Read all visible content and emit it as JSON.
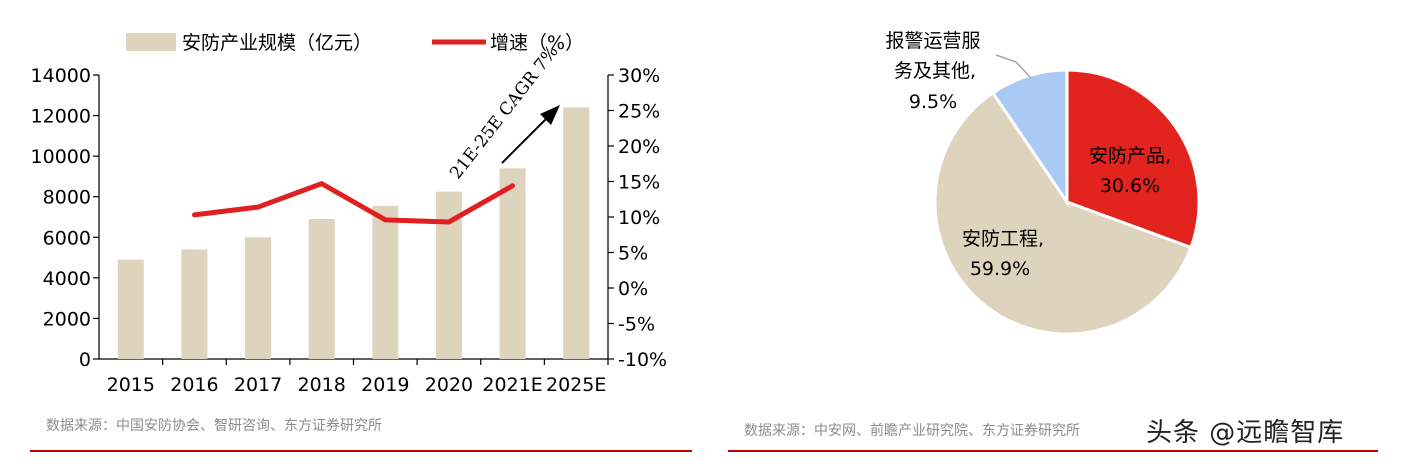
{
  "chart_data": [
    {
      "type": "bar",
      "categories": [
        "2015",
        "2016",
        "2017",
        "2018",
        "2019",
        "2020",
        "2021E",
        "2025E"
      ],
      "series": [
        {
          "name": "安防产业规模（亿元）",
          "type": "bar",
          "axis": "left",
          "color": "#ded3bc",
          "values": [
            4900,
            5400,
            6000,
            6900,
            7550,
            8250,
            9400,
            12400
          ]
        },
        {
          "name": "增速（%）",
          "type": "line",
          "axis": "right",
          "color": "#e02020",
          "values": [
            null,
            10.3,
            11.4,
            14.7,
            9.6,
            9.3,
            14.4,
            null
          ]
        }
      ],
      "ylim_left": [
        0,
        14000
      ],
      "yticks_left": [
        "0",
        "2000",
        "4000",
        "6000",
        "8000",
        "10000",
        "12000",
        "14000"
      ],
      "ylim_right": [
        -10,
        30
      ],
      "yticks_right": [
        "-10%",
        "-5%",
        "0%",
        "5%",
        "10%",
        "15%",
        "20%",
        "25%",
        "30%"
      ],
      "legend_position": "top",
      "annotation": "21E-25E CAGR 7%",
      "source": "数据来源：中国安防协会、智研咨询、东方证券研究所"
    },
    {
      "type": "pie",
      "slices": [
        {
          "label": "安防产品",
          "value": 30.6,
          "display": "30.6%",
          "color": "#e3231e"
        },
        {
          "label": "安防工程",
          "value": 59.9,
          "display": "59.9%",
          "color": "#ded3bc"
        },
        {
          "label": "报警运营服务及其他",
          "label_line1": "报警运营服",
          "label_line2": "务及其他,",
          "value": 9.5,
          "display": "9.5%",
          "color": "#a9caf4"
        }
      ],
      "source": "数据来源：中安网、前瞻产业研究院、东方证券研究所"
    }
  ],
  "watermark": "头条 @远瞻智库"
}
